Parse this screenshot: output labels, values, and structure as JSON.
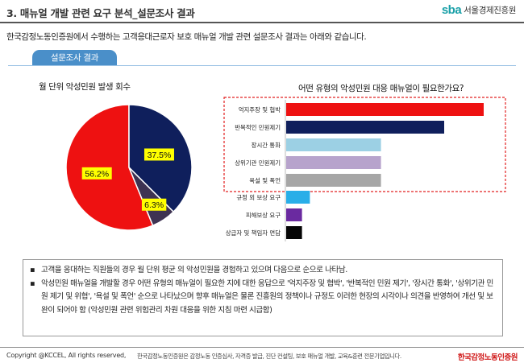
{
  "header": {
    "title": "3. 매뉴얼 개발 관련 요구 분석_설문조사 결과",
    "logo_mark": "sba",
    "logo_text": "서울경제진흥원"
  },
  "intro": "한국감정노동인증원에서 수행하는 고객응대근로자 보호 매뉴얼 개발 관련 설문조사 결과는 아래와 같습니다.",
  "section_tab": "설문조사 결과",
  "chart_data": [
    {
      "type": "pie",
      "title": "월 단위 악성민원 발생 회수",
      "values": [
        56.2,
        37.5,
        6.3
      ],
      "labels": [
        "56.2%",
        "37.5%",
        "6.3%"
      ],
      "colors": [
        "#ee1111",
        "#0f1f5c",
        "#3e3352"
      ],
      "label_bg": "#ffff00"
    },
    {
      "type": "bar",
      "orientation": "horizontal",
      "title": "어떤 유형의 악성민원 대응 매뉴얼이 필요한가요?",
      "categories": [
        "억지주장 및 협박",
        "반복적인 민원제기",
        "장시간 통화",
        "상위기관 민원제기",
        "욕설 및 폭언",
        "규정 외 보상 요구",
        "피해보상 요구",
        "상급자 및 책임자 면담"
      ],
      "values": [
        100,
        80,
        48,
        48,
        48,
        12,
        8,
        8
      ],
      "colors": [
        "#ee1111",
        "#0f1f5c",
        "#9cd0e4",
        "#b7a3cc",
        "#a6a6a6",
        "#29aee8",
        "#6a2aa0",
        "#050505"
      ],
      "highlight_box": "dashed red around top 5 categories"
    }
  ],
  "notes": [
    "고객을 응대하는 직원들의 경우 월 단위 평균 의 악성민원을 경험하고 있으며 다음으로 순으로 나타남.",
    "악성민원 매뉴얼을 개발할 경우 어떤 유형의 매뉴얼이 필요한 지에 대한 응답으로 '억지주장 및 협박', '반복적인 민원 제기', '장시간 통화', '상위기관 민원 제기 및 위협', '욕설 및 폭언' 순으로 나타났으며 향후 매뉴얼은 물론 진흥원의 정책이나 규정도 이러한 현장의 시각이나 의견을 반영하여 개선 및 보완이 되어야 함 (악성민원 관련 위험관리 차원 대응을 위한 지침 마련 시급함)"
  ],
  "note_bullet": "▪",
  "footer": {
    "copyright": "Copyright @KCCEL, All rights reserved,",
    "description": "한국감정노동인증원은 감정노동 인증심사, 자격증 발급, 진단 컨설팅, 보호 매뉴얼 개발, 교육&훈련 전문기업입니다.",
    "brand": "한국감정노동인증원"
  }
}
